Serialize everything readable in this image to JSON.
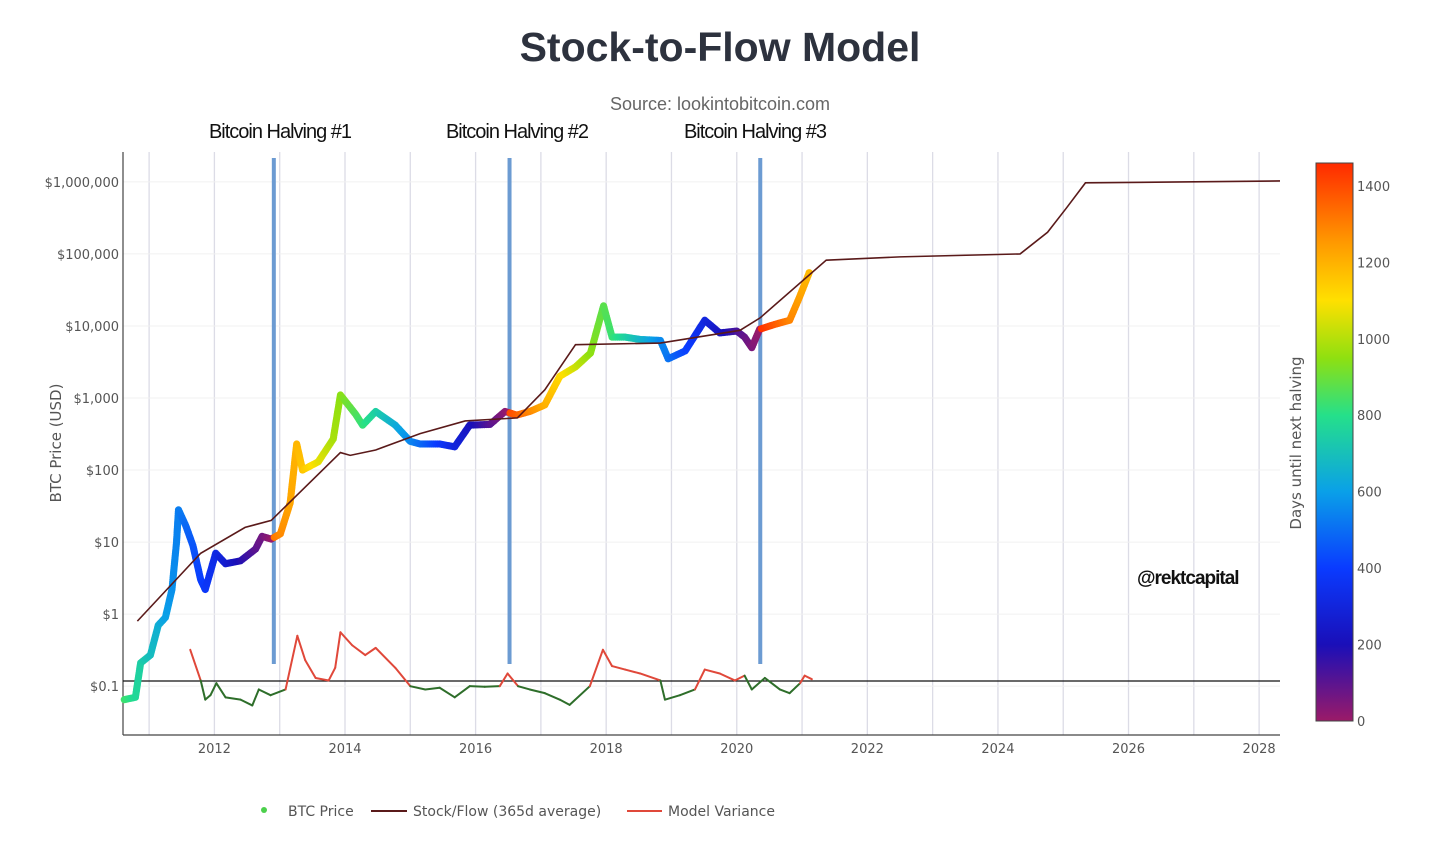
{
  "title": "Stock-to-Flow Model",
  "source": "Source: lookintobitcoin.com",
  "watermark": "@rektcapital",
  "halvings": [
    {
      "label": "Bitcoin Halving #1",
      "date": 2012.91
    },
    {
      "label": "Bitcoin Halving #2",
      "date": 2016.52
    },
    {
      "label": "Bitcoin Halving #3",
      "date": 2020.36
    }
  ],
  "chart_data": {
    "type": "scatter",
    "title": "Stock-to-Flow Model",
    "ylabel": "BTC Price (USD)",
    "xlabel": "",
    "yscale": "log",
    "xlim": [
      2010.6,
      2028.32
    ],
    "ylim": [
      0.021,
      2600000
    ],
    "grid": true,
    "legend_position": "bottom",
    "x_ticks": [
      "2012",
      "2014",
      "2016",
      "2018",
      "2020",
      "2022",
      "2024",
      "2026",
      "2028"
    ],
    "y_ticks": [
      {
        "value": 1000000,
        "label": "$1,000,000"
      },
      {
        "value": 100000,
        "label": "$100,000"
      },
      {
        "value": 10000,
        "label": "$10,000"
      },
      {
        "value": 1000,
        "label": "$1,000"
      },
      {
        "value": 100,
        "label": "$100"
      },
      {
        "value": 10,
        "label": "$10"
      },
      {
        "value": 1,
        "label": "$1"
      },
      {
        "value": 0.1,
        "label": "$0.1"
      }
    ],
    "colorbar": {
      "title": "Days until next halving",
      "range": [
        0,
        1460
      ],
      "ticks": [
        "0",
        "200",
        "400",
        "600",
        "800",
        "1000",
        "1200",
        "1400"
      ],
      "colorscale": [
        [
          0,
          "#9b1a68"
        ],
        [
          200,
          "#1a0fb8"
        ],
        [
          400,
          "#0a3bff"
        ],
        [
          600,
          "#0aa0e8"
        ],
        [
          800,
          "#25e08a"
        ],
        [
          950,
          "#8fe010"
        ],
        [
          1100,
          "#ffe000"
        ],
        [
          1250,
          "#ff9a00"
        ],
        [
          1460,
          "#ff2a00"
        ]
      ]
    },
    "series": [
      {
        "name": "BTC Price",
        "kind": "markers",
        "legend_color": "#4cd04c",
        "points": [
          [
            2010.62,
            0.065
          ],
          [
            2010.79,
            0.07
          ],
          [
            2010.87,
            0.21
          ],
          [
            2011.02,
            0.27
          ],
          [
            2011.14,
            0.7
          ],
          [
            2011.25,
            0.9
          ],
          [
            2011.35,
            2.2
          ],
          [
            2011.42,
            10
          ],
          [
            2011.45,
            28
          ],
          [
            2011.56,
            17
          ],
          [
            2011.67,
            9
          ],
          [
            2011.79,
            3
          ],
          [
            2011.86,
            2.2
          ],
          [
            2012.02,
            7
          ],
          [
            2012.17,
            5
          ],
          [
            2012.4,
            5.5
          ],
          [
            2012.63,
            8
          ],
          [
            2012.73,
            12
          ],
          [
            2012.87,
            11
          ],
          [
            2013.01,
            13
          ],
          [
            2013.16,
            35
          ],
          [
            2013.26,
            230
          ],
          [
            2013.35,
            100
          ],
          [
            2013.59,
            130
          ],
          [
            2013.82,
            270
          ],
          [
            2013.93,
            1100
          ],
          [
            2014.16,
            600
          ],
          [
            2014.27,
            420
          ],
          [
            2014.47,
            650
          ],
          [
            2014.77,
            420
          ],
          [
            2015.0,
            250
          ],
          [
            2015.15,
            230
          ],
          [
            2015.45,
            230
          ],
          [
            2015.68,
            210
          ],
          [
            2015.91,
            420
          ],
          [
            2016.22,
            430
          ],
          [
            2016.45,
            650
          ],
          [
            2016.63,
            580
          ],
          [
            2016.83,
            650
          ],
          [
            2017.06,
            800
          ],
          [
            2017.29,
            2000
          ],
          [
            2017.53,
            2700
          ],
          [
            2017.76,
            4200
          ],
          [
            2017.96,
            19000
          ],
          [
            2018.09,
            7000
          ],
          [
            2018.29,
            7000
          ],
          [
            2018.52,
            6500
          ],
          [
            2018.83,
            6300
          ],
          [
            2018.95,
            3500
          ],
          [
            2019.21,
            4500
          ],
          [
            2019.51,
            12000
          ],
          [
            2019.74,
            8000
          ],
          [
            2020.0,
            8500
          ],
          [
            2020.12,
            7000
          ],
          [
            2020.23,
            5000
          ],
          [
            2020.35,
            9000
          ],
          [
            2020.58,
            10500
          ],
          [
            2020.81,
            12000
          ],
          [
            2020.96,
            25000
          ],
          [
            2021.12,
            58000
          ]
        ]
      },
      {
        "name": "Stock/Flow (365d average)",
        "kind": "line",
        "color": "#5a1a1a",
        "points": [
          [
            2010.82,
            0.8
          ],
          [
            2011.79,
            7
          ],
          [
            2012.47,
            16
          ],
          [
            2012.87,
            20
          ],
          [
            2013.93,
            175
          ],
          [
            2014.08,
            160
          ],
          [
            2014.47,
            190
          ],
          [
            2015.15,
            320
          ],
          [
            2015.84,
            480
          ],
          [
            2016.64,
            530
          ],
          [
            2017.06,
            1300
          ],
          [
            2017.53,
            5500
          ],
          [
            2018.83,
            5800
          ],
          [
            2020.05,
            8700
          ],
          [
            2020.36,
            13000
          ],
          [
            2021.37,
            82000
          ],
          [
            2022.5,
            91000
          ],
          [
            2024.34,
            100000
          ],
          [
            2024.76,
            200000
          ],
          [
            2025.05,
            435000
          ],
          [
            2025.34,
            970000
          ],
          [
            2028.32,
            1030000
          ]
        ]
      },
      {
        "name": "Model Variance",
        "kind": "line",
        "color": "#e0483a",
        "below_color": "#2e6e2a",
        "baseline": 0.118,
        "points": [
          [
            2011.63,
            0.32
          ],
          [
            2011.79,
            0.12
          ],
          [
            2011.86,
            0.065
          ],
          [
            2011.94,
            0.075
          ],
          [
            2012.03,
            0.11
          ],
          [
            2012.17,
            0.07
          ],
          [
            2012.4,
            0.065
          ],
          [
            2012.58,
            0.054
          ],
          [
            2012.68,
            0.09
          ],
          [
            2012.86,
            0.075
          ],
          [
            2013.09,
            0.09
          ],
          [
            2013.27,
            0.5
          ],
          [
            2013.39,
            0.23
          ],
          [
            2013.55,
            0.13
          ],
          [
            2013.75,
            0.12
          ],
          [
            2013.85,
            0.18
          ],
          [
            2013.93,
            0.56
          ],
          [
            2014.11,
            0.37
          ],
          [
            2014.31,
            0.27
          ],
          [
            2014.47,
            0.34
          ],
          [
            2014.77,
            0.18
          ],
          [
            2015.0,
            0.1
          ],
          [
            2015.23,
            0.09
          ],
          [
            2015.45,
            0.095
          ],
          [
            2015.68,
            0.07
          ],
          [
            2015.91,
            0.1
          ],
          [
            2016.14,
            0.098
          ],
          [
            2016.37,
            0.1
          ],
          [
            2016.49,
            0.15
          ],
          [
            2016.65,
            0.1
          ],
          [
            2016.83,
            0.09
          ],
          [
            2017.06,
            0.08
          ],
          [
            2017.29,
            0.065
          ],
          [
            2017.44,
            0.055
          ],
          [
            2017.75,
            0.1
          ],
          [
            2017.95,
            0.32
          ],
          [
            2018.09,
            0.19
          ],
          [
            2018.29,
            0.17
          ],
          [
            2018.52,
            0.15
          ],
          [
            2018.83,
            0.12
          ],
          [
            2018.9,
            0.065
          ],
          [
            2019.13,
            0.075
          ],
          [
            2019.36,
            0.09
          ],
          [
            2019.51,
            0.17
          ],
          [
            2019.74,
            0.15
          ],
          [
            2019.97,
            0.12
          ],
          [
            2020.12,
            0.14
          ],
          [
            2020.23,
            0.09
          ],
          [
            2020.43,
            0.13
          ],
          [
            2020.66,
            0.09
          ],
          [
            2020.81,
            0.08
          ],
          [
            2020.97,
            0.11
          ],
          [
            2021.04,
            0.14
          ],
          [
            2021.15,
            0.125
          ]
        ]
      }
    ]
  }
}
